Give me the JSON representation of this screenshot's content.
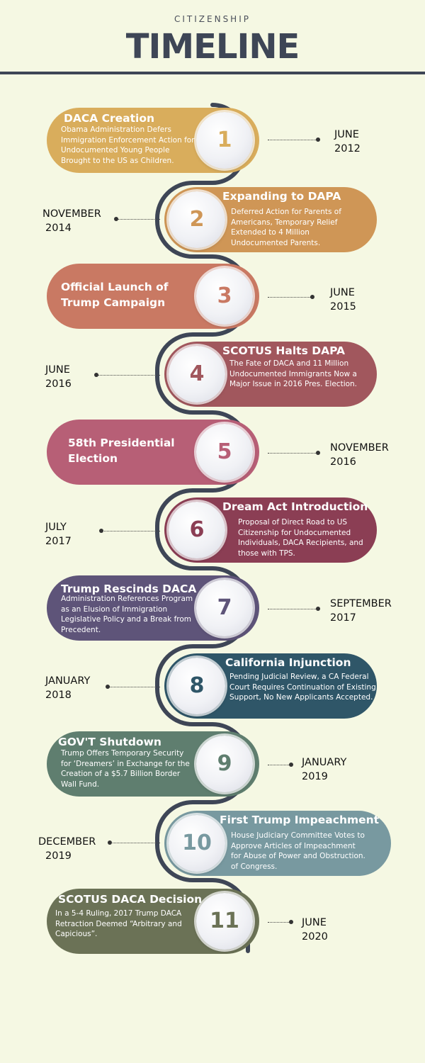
{
  "header": {
    "kicker": "CITIZENSHIP",
    "title": "TIMELINE"
  },
  "colors": {
    "background": "#f5f8e3",
    "path": "#3e4656"
  },
  "events": [
    {
      "number": "1",
      "title": "DACA Creation",
      "description": "Obama Administration Defers Immigration Enforcement Action for Undocumented Young People Brought to the US as Children.",
      "month": "JUNE",
      "year": "2012",
      "color": "#d9ad5c"
    },
    {
      "number": "2",
      "title": "Expanding to DAPA",
      "description": "Deferred Action for Parents of Americans, Temporary Relief Extended to 4 Million Undocumented  Parents.",
      "month": "NOVEMBER",
      "year": "2014",
      "color": "#cf9656"
    },
    {
      "number": "3",
      "title": "Official Launch of Trump Campaign",
      "description": "",
      "month": "JUNE",
      "year": "2015",
      "color": "#c97963"
    },
    {
      "number": "4",
      "title": "SCOTUS Halts DAPA",
      "description": "The Fate of DACA and 11 Million Undocumented Immigrants Now a Major Issue in 2016 Pres. Election.",
      "month": "JUNE",
      "year": "2016",
      "color": "#a1575d"
    },
    {
      "number": "5",
      "title": "58th Presidential Election",
      "description": "",
      "month": "NOVEMBER",
      "year": "2016",
      "color": "#b75f76"
    },
    {
      "number": "6",
      "title": "Dream Act Introduction",
      "description": "Proposal of Direct Road to US Citizenship for Undocumented Individuals, DACA Recipients, and those with TPS.",
      "month": "JULY",
      "year": "2017",
      "color": "#8b3e54"
    },
    {
      "number": "7",
      "title": "Trump Rescinds DACA",
      "description": "Administration References Program as an Elusion of Immigration Legislative Policy and a Break from Precedent.",
      "month": "SEPTEMBER",
      "year": "2017",
      "color": "#5e5479"
    },
    {
      "number": "8",
      "title": "California Injunction",
      "description": "Pending Judicial Review, a CA Federal Court Requires Continuation of Existing Support, No New Applicants Accepted.",
      "month": "JANUARY",
      "year": "2018",
      "color": "#2f5668"
    },
    {
      "number": "9",
      "title": "GOV'T Shutdown",
      "description": "Trump Offers Temporary Security for ‘Dreamers’ in Exchange for the Creation of a $5.7 Billion Border Wall Fund.",
      "month": "JANUARY",
      "year": "2019",
      "color": "#5f7e6f"
    },
    {
      "number": "10",
      "title": "First Trump Impeachment",
      "description": "House Judiciary Committee Votes to Approve Articles of Impeachment for Abuse of Power and Obstruction. of Congress.",
      "month": "DECEMBER",
      "year": "2019",
      "color": "#7899a0"
    },
    {
      "number": "11",
      "title": "SCOTUS DACA Decision",
      "description": "In a 5-4 Ruling, 2017 Trump DACA Retraction Deemed “Arbitrary and Capicious”.",
      "month": "JUNE",
      "year": "2020",
      "color": "#6b7256"
    }
  ]
}
